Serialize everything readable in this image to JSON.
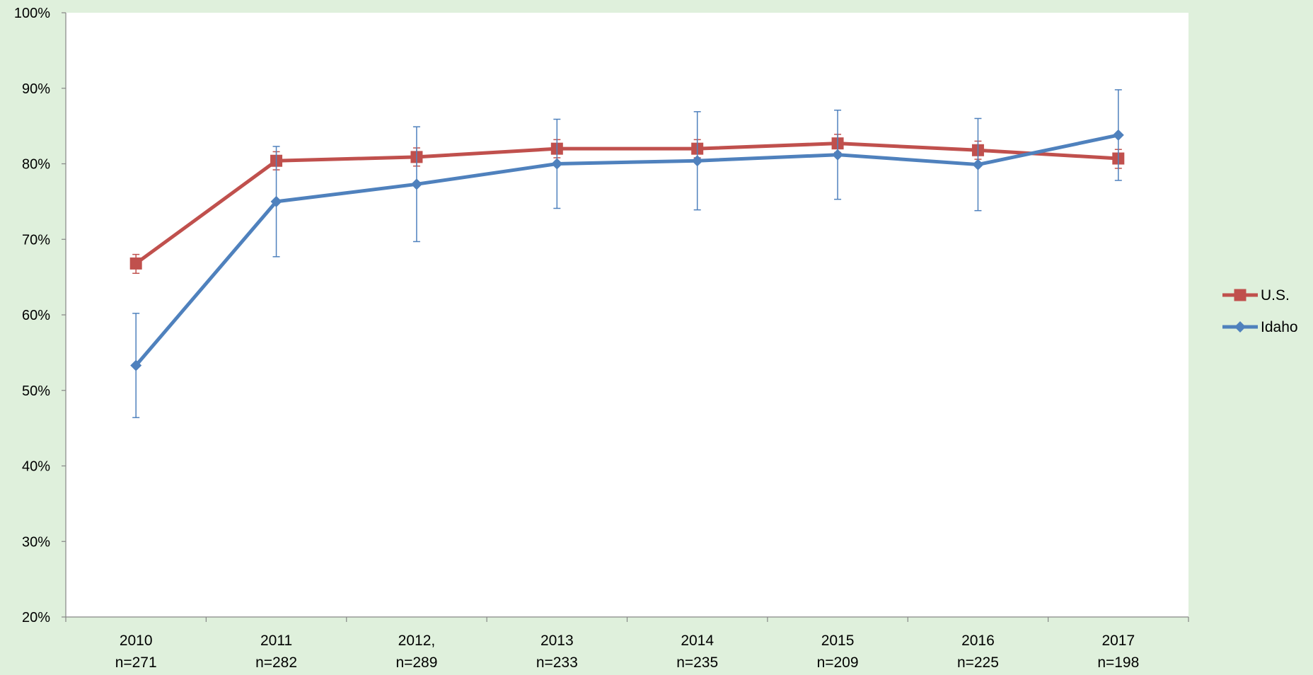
{
  "chart_data": {
    "type": "line",
    "title": "",
    "xlabel": "",
    "ylabel": "",
    "categories": [
      {
        "line1": "2010",
        "line2": "n=271"
      },
      {
        "line1": "2011",
        "line2": "n=282"
      },
      {
        "line1": "2012,",
        "line2": "n=289"
      },
      {
        "line1": "2013",
        "line2": "n=233"
      },
      {
        "line1": "2014",
        "line2": "n=235"
      },
      {
        "line1": "2015",
        "line2": "n=209"
      },
      {
        "line1": "2016",
        "line2": "n=225"
      },
      {
        "line1": "2017",
        "line2": "n=198"
      }
    ],
    "ylim": [
      20,
      100
    ],
    "yticks": [
      "20%",
      "30%",
      "40%",
      "50%",
      "60%",
      "70%",
      "80%",
      "90%",
      "100%"
    ],
    "grid": false,
    "legend_position": "right",
    "series": [
      {
        "name": "U.S.",
        "color": "#c0504d",
        "marker": "square",
        "values": [
          66.8,
          80.4,
          80.9,
          82.0,
          82.0,
          82.7,
          81.8,
          80.7
        ],
        "err_low": [
          65.5,
          79.2,
          79.7,
          80.8,
          80.8,
          81.5,
          80.6,
          79.4
        ],
        "err_high": [
          68.0,
          81.6,
          82.1,
          83.2,
          83.2,
          83.9,
          83.0,
          81.9
        ]
      },
      {
        "name": "Idaho",
        "color": "#4f81bd",
        "marker": "diamond",
        "values": [
          53.3,
          75.0,
          77.3,
          80.0,
          80.4,
          81.2,
          79.9,
          83.8
        ],
        "err_low": [
          46.4,
          67.7,
          69.7,
          74.1,
          73.9,
          75.3,
          73.8,
          77.8
        ],
        "err_high": [
          60.2,
          82.3,
          84.9,
          85.9,
          86.9,
          87.1,
          86.0,
          89.8
        ]
      }
    ]
  }
}
